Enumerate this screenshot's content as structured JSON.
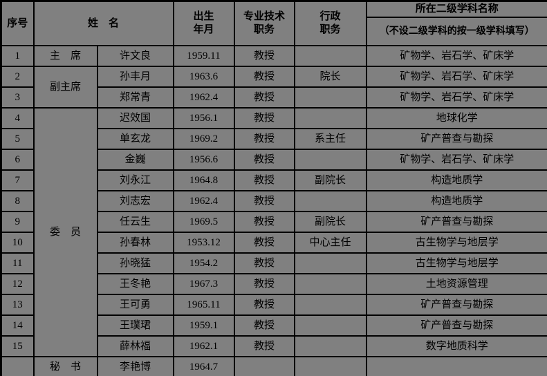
{
  "colors": {
    "background": "#808080",
    "border": "#000000",
    "text": "#000000"
  },
  "table": {
    "header": {
      "serial": "序号",
      "name": "姓　名",
      "birth_lines": [
        "出生",
        "年月"
      ],
      "title_lines": [
        "专业技术",
        "职务"
      ],
      "admin_lines": [
        "行政",
        "职务"
      ],
      "discipline_title": "所在二级学科名称",
      "discipline_note": "（不设二级学科的按一级学科填写）"
    },
    "position_groups": [
      {
        "label": "主　席",
        "rowspan": 1
      },
      {
        "label": "副主席",
        "rowspan": 2
      },
      {
        "label": "委　员",
        "rowspan": 12
      },
      {
        "label": "秘　书",
        "rowspan": 1
      }
    ],
    "rows": [
      {
        "serial": "1",
        "name": "许文良",
        "birth": "1959.11",
        "title": "教授",
        "admin": "",
        "discipline": "矿物学、岩石学、矿床学"
      },
      {
        "serial": "2",
        "name": "孙丰月",
        "birth": "1963.6",
        "title": "教授",
        "admin": "院长",
        "discipline": "矿物学、岩石学、矿床学"
      },
      {
        "serial": "3",
        "name": "郑常青",
        "birth": "1962.4",
        "title": "教授",
        "admin": "",
        "discipline": "矿物学、岩石学、矿床学"
      },
      {
        "serial": "4",
        "name": "迟效国",
        "birth": "1956.1",
        "title": "教授",
        "admin": "",
        "discipline": "地球化学"
      },
      {
        "serial": "5",
        "name": "单玄龙",
        "birth": "1969.2",
        "title": "教授",
        "admin": "系主任",
        "discipline": "矿产普查与勘探"
      },
      {
        "serial": "6",
        "name": "金巍",
        "birth": "1956.6",
        "title": "教授",
        "admin": "",
        "discipline": "矿物学、岩石学、矿床学"
      },
      {
        "serial": "7",
        "name": "刘永江",
        "birth": "1964.8",
        "title": "教授",
        "admin": "副院长",
        "discipline": "构造地质学"
      },
      {
        "serial": "8",
        "name": "刘志宏",
        "birth": "1962.4",
        "title": "教授",
        "admin": "",
        "discipline": "构造地质学"
      },
      {
        "serial": "9",
        "name": "任云生",
        "birth": "1969.5",
        "title": "教授",
        "admin": "副院长",
        "discipline": "矿产普查与勘探"
      },
      {
        "serial": "10",
        "name": "孙春林",
        "birth": "1953.12",
        "title": "教授",
        "admin": "中心主任",
        "discipline": "古生物学与地层学"
      },
      {
        "serial": "11",
        "name": "孙晓猛",
        "birth": "1954.2",
        "title": "教授",
        "admin": "",
        "discipline": "古生物学与地层学"
      },
      {
        "serial": "12",
        "name": "王冬艳",
        "birth": "1967.3",
        "title": "教授",
        "admin": "",
        "discipline": "土地资源管理"
      },
      {
        "serial": "13",
        "name": "王可勇",
        "birth": "1965.11",
        "title": "教授",
        "admin": "",
        "discipline": "矿产普查与勘探"
      },
      {
        "serial": "14",
        "name": "王璞珺",
        "birth": "1959.1",
        "title": "教授",
        "admin": "",
        "discipline": "矿产普查与勘探"
      },
      {
        "serial": "15",
        "name": "薛林福",
        "birth": "1962.1",
        "title": "教授",
        "admin": "",
        "discipline": "数字地质科学"
      },
      {
        "serial": "",
        "name": "李艳博",
        "birth": "1964.7",
        "title": "",
        "admin": "",
        "discipline": ""
      }
    ]
  }
}
